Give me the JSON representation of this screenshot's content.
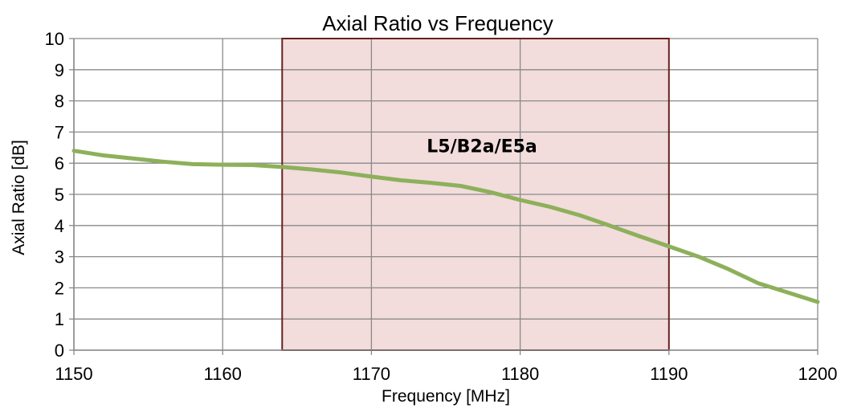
{
  "chart_data": {
    "type": "line",
    "title": "Axial Ratio vs Frequency",
    "xlabel": "Frequency [MHz]",
    "ylabel": "Axial Ratio [dB]",
    "xlim": [
      1150,
      1200
    ],
    "ylim": [
      0,
      10
    ],
    "x_ticks": [
      1150,
      1160,
      1170,
      1180,
      1190,
      1200
    ],
    "y_ticks": [
      0,
      1,
      2,
      3,
      4,
      5,
      6,
      7,
      8,
      9,
      10
    ],
    "grid": true,
    "legend": "none",
    "series": [
      {
        "color": "#8db05a",
        "x": [
          1150,
          1152,
          1154,
          1156,
          1158,
          1160,
          1162,
          1164,
          1166,
          1168,
          1170,
          1172,
          1174,
          1176,
          1178,
          1180,
          1182,
          1184,
          1186,
          1188,
          1190,
          1192,
          1194,
          1196,
          1198,
          1200
        ],
        "y": [
          6.4,
          6.25,
          6.15,
          6.05,
          5.97,
          5.95,
          5.94,
          5.88,
          5.8,
          5.7,
          5.57,
          5.45,
          5.37,
          5.27,
          5.07,
          4.82,
          4.6,
          4.33,
          4.0,
          3.66,
          3.33,
          3.0,
          2.6,
          2.15,
          1.85,
          1.55
        ]
      }
    ],
    "band": {
      "label": "L5/B2a/E5a",
      "x_start": 1164,
      "x_end": 1190,
      "fill": "#f2dcdc",
      "border": "#6b1f1f"
    }
  }
}
